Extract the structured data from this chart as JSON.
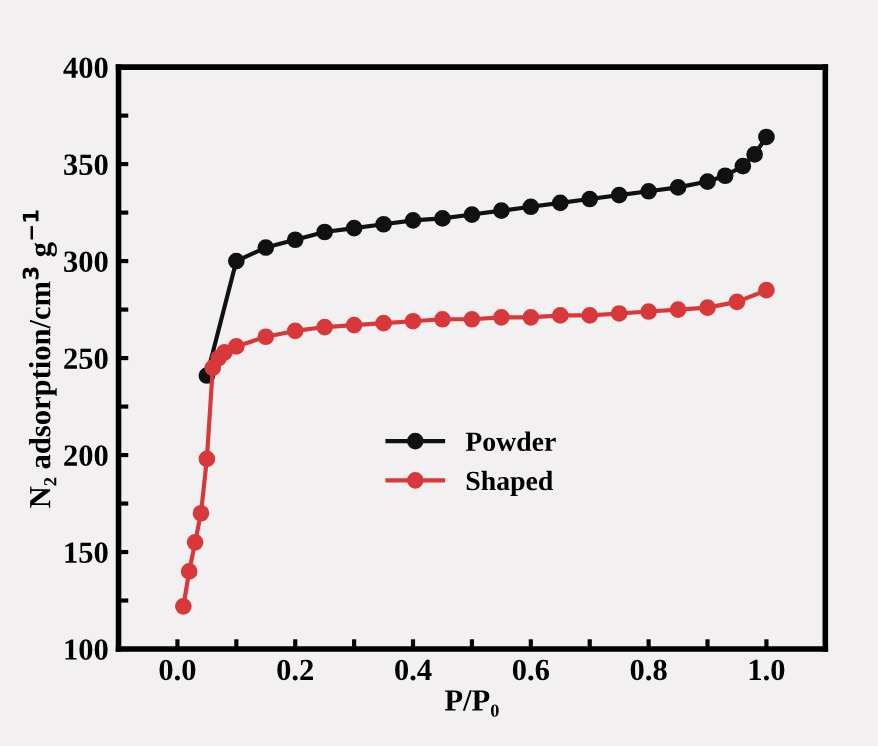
{
  "chart_data": {
    "type": "line",
    "xlabel": "P/P₀",
    "ylabel": "N₂ adsorption/cm$^{3}$ g$^{−1}$",
    "xlim": [
      -0.1,
      1.1
    ],
    "ylim": [
      100,
      400
    ],
    "xticks": [
      {
        "value": -0.1,
        "label": null
      },
      {
        "value": 0.0,
        "label": "0.0"
      },
      {
        "value": 0.1,
        "label": null
      },
      0.2,
      {
        "value": 0.3,
        "label": null
      },
      0.4,
      {
        "value": 0.5,
        "label": null
      },
      0.6,
      {
        "value": 0.7,
        "label": null
      },
      0.8,
      {
        "value": 0.9,
        "label": null
      },
      {
        "value": 1.0,
        "label": "1.0"
      }
    ],
    "yticks": [
      100,
      {
        "value": 125,
        "label": null
      },
      150,
      {
        "value": 175,
        "label": null
      },
      200,
      {
        "value": 225,
        "label": null
      },
      250,
      {
        "value": 275,
        "label": null
      },
      300,
      {
        "value": 325,
        "label": null
      },
      350,
      {
        "value": 375,
        "label": null
      },
      400
    ],
    "marker": "circle",
    "line_style": "solid",
    "grid": false,
    "legend": "bottom",
    "series": [
      {
        "name": "Powder",
        "color": "#111111",
        "x": [
          0.05,
          0.1,
          0.15,
          0.2,
          0.25,
          0.3,
          0.35,
          0.4,
          0.45,
          0.5,
          0.55,
          0.6,
          0.65,
          0.7,
          0.75,
          0.8,
          0.85,
          0.9,
          0.93,
          0.96,
          0.98,
          1.0
        ],
        "values": [
          241,
          300,
          307,
          311,
          315,
          317,
          319,
          321,
          322,
          324,
          326,
          328,
          330,
          332,
          334,
          336,
          338,
          341,
          344,
          349,
          355,
          364
        ]
      },
      {
        "name": "Shaped",
        "color": "#d9383a",
        "x": [
          0.01,
          0.02,
          0.03,
          0.04,
          0.05,
          0.06,
          0.07,
          0.08,
          0.1,
          0.15,
          0.2,
          0.25,
          0.3,
          0.35,
          0.4,
          0.45,
          0.5,
          0.55,
          0.6,
          0.65,
          0.7,
          0.75,
          0.8,
          0.85,
          0.9,
          0.95,
          1.0
        ],
        "values": [
          122,
          140,
          155,
          170,
          198,
          245,
          250,
          253,
          256,
          261,
          264,
          266,
          267,
          268,
          269,
          270,
          270,
          271,
          271,
          272,
          272,
          273,
          274,
          275,
          276,
          279,
          285
        ]
      }
    ]
  }
}
